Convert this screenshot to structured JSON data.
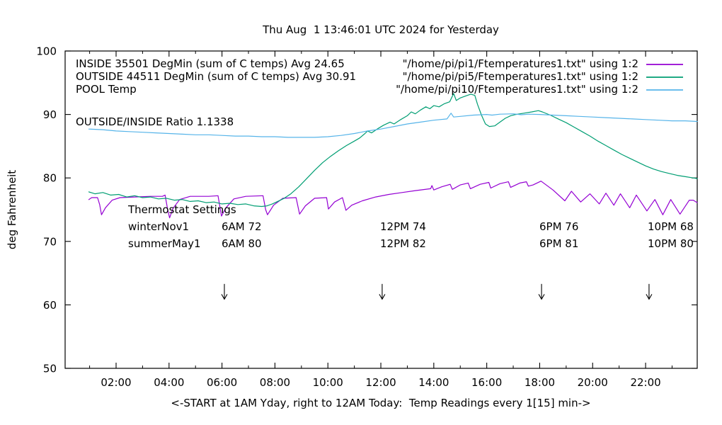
{
  "title": "Thu Aug  1 13:46:01 UTC 2024 for Yesterday",
  "xlabel": "<-START at 1AM Yday, right to 12AM Today:  Temp Readings every 1[15] min->",
  "ylabel": "deg Fahrenheit",
  "annotations": {
    "ratio_label": "OUTSIDE/INSIDE Ratio 1.1338",
    "thermostat": {
      "heading": "Thermostat Settings",
      "rows": [
        {
          "label": "winterNov1",
          "settings": [
            "6AM 72",
            "12PM 74",
            "6PM 76",
            "10PM 68"
          ]
        },
        {
          "label": "summerMay1",
          "settings": [
            "6AM 80",
            "12PM 82",
            "6PM 81",
            "10PM 80"
          ]
        }
      ]
    }
  },
  "chart_data": {
    "type": "line",
    "title": "Thu Aug  1 13:46:01 UTC 2024 for Yesterday",
    "xlabel": "<-START at 1AM Yday, right to 12AM Today:  Temp Readings every 1[15] min->",
    "ylabel": "deg Fahrenheit",
    "xlim": [
      0.075,
      23.95
    ],
    "ylim": [
      50,
      100
    ],
    "x_unit": "hour of day (1 = 1AM yesterday, 24 = 12AM today)",
    "grid": false,
    "legend_position": "top, inside plot; labels left, file names right-aligned with line samples",
    "xticks": [
      {
        "t": 2,
        "label": "02:00"
      },
      {
        "t": 4,
        "label": "04:00"
      },
      {
        "t": 6,
        "label": "06:00"
      },
      {
        "t": 8,
        "label": "08:00"
      },
      {
        "t": 10,
        "label": "10:00"
      },
      {
        "t": 12,
        "label": "12:00"
      },
      {
        "t": 14,
        "label": "14:00"
      },
      {
        "t": 16,
        "label": "16:00"
      },
      {
        "t": 18,
        "label": "18:00"
      },
      {
        "t": 20,
        "label": "20:00"
      },
      {
        "t": 22,
        "label": "22:00"
      }
    ],
    "minor_xticks": [
      1,
      3,
      5,
      7,
      9,
      11,
      13,
      15,
      17,
      19,
      21,
      23
    ],
    "yticks": [
      50,
      60,
      70,
      80,
      90,
      100
    ],
    "arrows": [
      {
        "t": 6.09,
        "v_from": 63.3,
        "v_to": 60.9,
        "meaning": "6AM thermostat change"
      },
      {
        "t": 12.05,
        "v_from": 63.3,
        "v_to": 60.9,
        "meaning": "12PM thermostat change"
      },
      {
        "t": 18.07,
        "v_from": 63.3,
        "v_to": 60.9,
        "meaning": "6PM thermostat change"
      },
      {
        "t": 22.13,
        "v_from": 63.3,
        "v_to": 60.9,
        "meaning": "10PM thermostat change"
      }
    ],
    "series": [
      {
        "name": "INSIDE",
        "legend_label": "INSIDE 35501 DegMin (sum of C temps) Avg 24.65",
        "file_label": "\"/home/pi/pi1/Ftemperatures1.txt\" using 1:2",
        "color": "#9400d3",
        "points": [
          [
            0.97,
            76.6
          ],
          [
            1.08,
            76.9
          ],
          [
            1.3,
            76.9
          ],
          [
            1.38,
            75.8
          ],
          [
            1.45,
            74.2
          ],
          [
            1.6,
            75.3
          ],
          [
            1.85,
            76.5
          ],
          [
            2.15,
            76.9
          ],
          [
            2.7,
            77.0
          ],
          [
            3.3,
            77.1
          ],
          [
            3.75,
            77.1
          ],
          [
            3.85,
            77.3
          ],
          [
            3.95,
            75.0
          ],
          [
            4.02,
            73.7
          ],
          [
            4.15,
            75.2
          ],
          [
            4.4,
            76.6
          ],
          [
            4.8,
            77.1
          ],
          [
            5.5,
            77.1
          ],
          [
            5.85,
            77.2
          ],
          [
            5.98,
            74.0
          ],
          [
            6.15,
            75.3
          ],
          [
            6.45,
            76.7
          ],
          [
            6.9,
            77.1
          ],
          [
            7.55,
            77.2
          ],
          [
            7.65,
            75.0
          ],
          [
            7.72,
            74.2
          ],
          [
            7.95,
            75.7
          ],
          [
            8.3,
            76.8
          ],
          [
            8.8,
            76.9
          ],
          [
            8.93,
            74.3
          ],
          [
            9.15,
            75.6
          ],
          [
            9.5,
            76.8
          ],
          [
            9.95,
            76.9
          ],
          [
            10.02,
            75.1
          ],
          [
            10.25,
            76.2
          ],
          [
            10.55,
            76.9
          ],
          [
            10.68,
            74.9
          ],
          [
            10.9,
            75.7
          ],
          [
            11.3,
            76.4
          ],
          [
            11.8,
            77.0
          ],
          [
            12.3,
            77.4
          ],
          [
            12.8,
            77.7
          ],
          [
            13.3,
            78.0
          ],
          [
            13.88,
            78.3
          ],
          [
            13.93,
            78.8
          ],
          [
            14.0,
            78.1
          ],
          [
            14.3,
            78.6
          ],
          [
            14.62,
            79.0
          ],
          [
            14.7,
            78.2
          ],
          [
            15.0,
            78.9
          ],
          [
            15.3,
            79.2
          ],
          [
            15.38,
            78.3
          ],
          [
            15.75,
            79.0
          ],
          [
            16.08,
            79.3
          ],
          [
            16.15,
            78.4
          ],
          [
            16.5,
            79.1
          ],
          [
            16.82,
            79.4
          ],
          [
            16.9,
            78.5
          ],
          [
            17.25,
            79.2
          ],
          [
            17.5,
            79.4
          ],
          [
            17.57,
            78.7
          ],
          [
            17.75,
            78.9
          ],
          [
            18.05,
            79.5
          ],
          [
            18.5,
            78.1
          ],
          [
            18.95,
            76.4
          ],
          [
            19.2,
            77.9
          ],
          [
            19.55,
            76.2
          ],
          [
            19.9,
            77.5
          ],
          [
            20.25,
            75.9
          ],
          [
            20.5,
            77.6
          ],
          [
            20.8,
            75.7
          ],
          [
            21.05,
            77.5
          ],
          [
            21.4,
            75.3
          ],
          [
            21.65,
            77.3
          ],
          [
            22.05,
            74.8
          ],
          [
            22.35,
            76.6
          ],
          [
            22.65,
            74.2
          ],
          [
            22.95,
            76.6
          ],
          [
            23.3,
            74.3
          ],
          [
            23.65,
            76.5
          ],
          [
            23.8,
            76.5
          ],
          [
            23.95,
            76.1
          ]
        ]
      },
      {
        "name": "OUTSIDE",
        "legend_label": "OUTSIDE 44511 DegMin (sum of C temps) Avg 30.91",
        "file_label": "\"/home/pi/pi5/Ftemperatures1.txt\" using 1:2",
        "color": "#009e73",
        "points": [
          [
            0.97,
            77.8
          ],
          [
            1.2,
            77.5
          ],
          [
            1.5,
            77.7
          ],
          [
            1.8,
            77.3
          ],
          [
            2.1,
            77.4
          ],
          [
            2.4,
            77.0
          ],
          [
            2.7,
            77.2
          ],
          [
            3.0,
            76.9
          ],
          [
            3.3,
            77.0
          ],
          [
            3.6,
            76.7
          ],
          [
            3.9,
            76.8
          ],
          [
            4.2,
            76.5
          ],
          [
            4.5,
            76.6
          ],
          [
            4.8,
            76.3
          ],
          [
            5.1,
            76.4
          ],
          [
            5.4,
            76.1
          ],
          [
            5.7,
            76.2
          ],
          [
            6.0,
            75.9
          ],
          [
            6.3,
            76.0
          ],
          [
            6.6,
            75.8
          ],
          [
            6.9,
            75.9
          ],
          [
            7.2,
            75.6
          ],
          [
            7.5,
            75.5
          ],
          [
            7.7,
            75.6
          ],
          [
            7.9,
            75.9
          ],
          [
            8.1,
            76.3
          ],
          [
            8.35,
            76.8
          ],
          [
            8.6,
            77.5
          ],
          [
            8.9,
            78.6
          ],
          [
            9.2,
            79.9
          ],
          [
            9.5,
            81.2
          ],
          [
            9.8,
            82.4
          ],
          [
            10.1,
            83.4
          ],
          [
            10.4,
            84.3
          ],
          [
            10.7,
            85.1
          ],
          [
            11.0,
            85.8
          ],
          [
            11.2,
            86.3
          ],
          [
            11.4,
            87.0
          ],
          [
            11.5,
            87.4
          ],
          [
            11.65,
            87.1
          ],
          [
            11.9,
            87.8
          ],
          [
            12.1,
            88.3
          ],
          [
            12.35,
            88.8
          ],
          [
            12.5,
            88.5
          ],
          [
            12.75,
            89.2
          ],
          [
            13.0,
            89.8
          ],
          [
            13.15,
            90.4
          ],
          [
            13.3,
            90.1
          ],
          [
            13.5,
            90.7
          ],
          [
            13.7,
            91.2
          ],
          [
            13.85,
            90.9
          ],
          [
            14.0,
            91.4
          ],
          [
            14.2,
            91.2
          ],
          [
            14.4,
            91.7
          ],
          [
            14.6,
            92.0
          ],
          [
            14.75,
            93.3
          ],
          [
            14.85,
            92.2
          ],
          [
            15.0,
            92.6
          ],
          [
            15.2,
            92.9
          ],
          [
            15.4,
            93.2
          ],
          [
            15.55,
            93.0
          ],
          [
            15.65,
            91.6
          ],
          [
            15.8,
            89.9
          ],
          [
            15.95,
            88.5
          ],
          [
            16.1,
            88.1
          ],
          [
            16.3,
            88.2
          ],
          [
            16.5,
            88.8
          ],
          [
            16.7,
            89.4
          ],
          [
            16.9,
            89.8
          ],
          [
            17.1,
            90.0
          ],
          [
            17.4,
            90.2
          ],
          [
            17.7,
            90.4
          ],
          [
            17.95,
            90.6
          ],
          [
            18.1,
            90.4
          ],
          [
            18.4,
            89.9
          ],
          [
            18.7,
            89.3
          ],
          [
            19.0,
            88.7
          ],
          [
            19.3,
            88.0
          ],
          [
            19.6,
            87.3
          ],
          [
            19.9,
            86.6
          ],
          [
            20.2,
            85.8
          ],
          [
            20.5,
            85.1
          ],
          [
            20.8,
            84.4
          ],
          [
            21.1,
            83.7
          ],
          [
            21.4,
            83.1
          ],
          [
            21.7,
            82.5
          ],
          [
            22.0,
            81.9
          ],
          [
            22.3,
            81.4
          ],
          [
            22.6,
            81.0
          ],
          [
            22.9,
            80.7
          ],
          [
            23.2,
            80.4
          ],
          [
            23.5,
            80.2
          ],
          [
            23.8,
            80.0
          ],
          [
            23.95,
            79.9
          ]
        ]
      },
      {
        "name": "POOL",
        "legend_label": "POOL Temp",
        "file_label": "\"/home/pi/pi10/Ftemperatures1.txt\" using 1:2",
        "color": "#56b4e9",
        "points": [
          [
            0.97,
            87.7
          ],
          [
            1.5,
            87.6
          ],
          [
            2.0,
            87.4
          ],
          [
            2.5,
            87.3
          ],
          [
            3.0,
            87.2
          ],
          [
            3.5,
            87.1
          ],
          [
            4.0,
            87.0
          ],
          [
            4.5,
            86.9
          ],
          [
            5.0,
            86.8
          ],
          [
            5.5,
            86.8
          ],
          [
            6.0,
            86.7
          ],
          [
            6.5,
            86.6
          ],
          [
            7.0,
            86.6
          ],
          [
            7.5,
            86.5
          ],
          [
            8.0,
            86.5
          ],
          [
            8.5,
            86.4
          ],
          [
            9.0,
            86.4
          ],
          [
            9.5,
            86.4
          ],
          [
            10.0,
            86.5
          ],
          [
            10.5,
            86.7
          ],
          [
            11.0,
            87.0
          ],
          [
            11.5,
            87.4
          ],
          [
            12.0,
            87.7
          ],
          [
            12.5,
            88.1
          ],
          [
            13.0,
            88.5
          ],
          [
            13.5,
            88.8
          ],
          [
            14.0,
            89.1
          ],
          [
            14.5,
            89.3
          ],
          [
            14.65,
            90.2
          ],
          [
            14.75,
            89.6
          ],
          [
            15.0,
            89.7
          ],
          [
            15.5,
            89.9
          ],
          [
            16.0,
            90.0
          ],
          [
            16.2,
            89.9
          ],
          [
            16.5,
            90.05
          ],
          [
            17.0,
            90.1
          ],
          [
            17.3,
            89.95
          ],
          [
            17.6,
            90.05
          ],
          [
            18.0,
            90.0
          ],
          [
            18.5,
            89.9
          ],
          [
            19.0,
            89.8
          ],
          [
            19.5,
            89.7
          ],
          [
            20.0,
            89.6
          ],
          [
            20.5,
            89.5
          ],
          [
            21.0,
            89.4
          ],
          [
            21.5,
            89.3
          ],
          [
            22.0,
            89.2
          ],
          [
            22.5,
            89.1
          ],
          [
            23.0,
            89.0
          ],
          [
            23.5,
            89.0
          ],
          [
            23.95,
            88.9
          ]
        ]
      }
    ]
  }
}
